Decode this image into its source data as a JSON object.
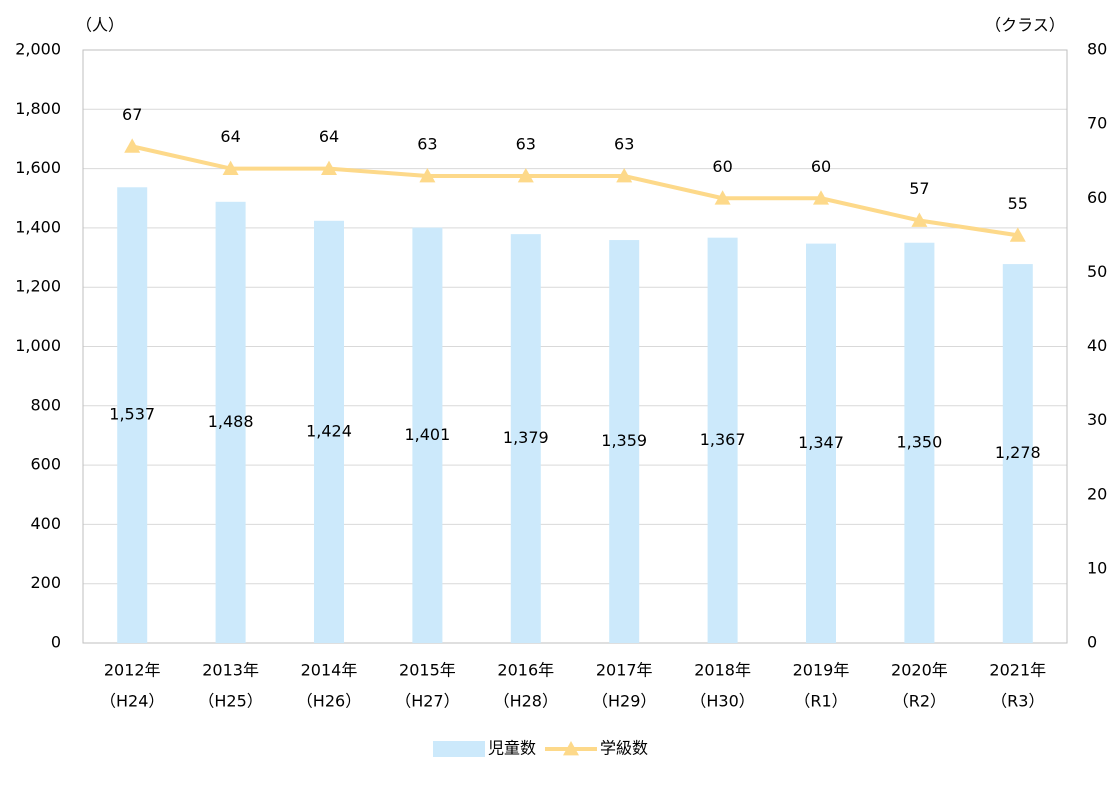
{
  "chart_data": {
    "type": "bar_line",
    "y_unit_label": "（人）",
    "y2_unit_label": "（クラス）",
    "categories": [
      [
        "2012年",
        "（H24）"
      ],
      [
        "2013年",
        "（H25）"
      ],
      [
        "2014年",
        "（H26）"
      ],
      [
        "2015年",
        "（H27）"
      ],
      [
        "2016年",
        "（H28）"
      ],
      [
        "2017年",
        "（H29）"
      ],
      [
        "2018年",
        "（H30）"
      ],
      [
        "2019年",
        "（R1）"
      ],
      [
        "2020年",
        "（R2）"
      ],
      [
        "2021年",
        "（R3）"
      ]
    ],
    "series": [
      {
        "name": "児童数",
        "type": "bar",
        "color": "#cce9fb",
        "values": [
          1537,
          1488,
          1424,
          1401,
          1379,
          1359,
          1367,
          1347,
          1350,
          1278
        ],
        "value_labels": [
          "1,537",
          "1,488",
          "1,424",
          "1,401",
          "1,379",
          "1,359",
          "1,367",
          "1,347",
          "1,350",
          "1,278"
        ]
      },
      {
        "name": "学級数",
        "type": "line",
        "axis": "y2",
        "color": "#fdd98a",
        "values": [
          67,
          64,
          64,
          63,
          63,
          63,
          60,
          60,
          57,
          55
        ]
      }
    ],
    "ylim": [
      0,
      2000
    ],
    "yticks": [
      0,
      {
        "value": 200,
        "label": "200"
      },
      {
        "value": 400,
        "label": "400"
      },
      {
        "value": 600,
        "label": "600"
      },
      {
        "value": 800,
        "label": "800"
      },
      {
        "value": 1000,
        "label": "1,000"
      },
      {
        "value": 1200,
        "label": "1,200"
      },
      {
        "value": 1400,
        "label": "1,400"
      },
      {
        "value": 1600,
        "label": "1,600"
      },
      {
        "value": 1800,
        "label": "1,800"
      },
      {
        "value": 2000,
        "label": "2,000"
      }
    ],
    "y2lim": [
      0,
      80
    ],
    "y2ticks": [
      0,
      10,
      20,
      30,
      40,
      50,
      60,
      70,
      80
    ],
    "grid": true,
    "legend": "bottom"
  }
}
